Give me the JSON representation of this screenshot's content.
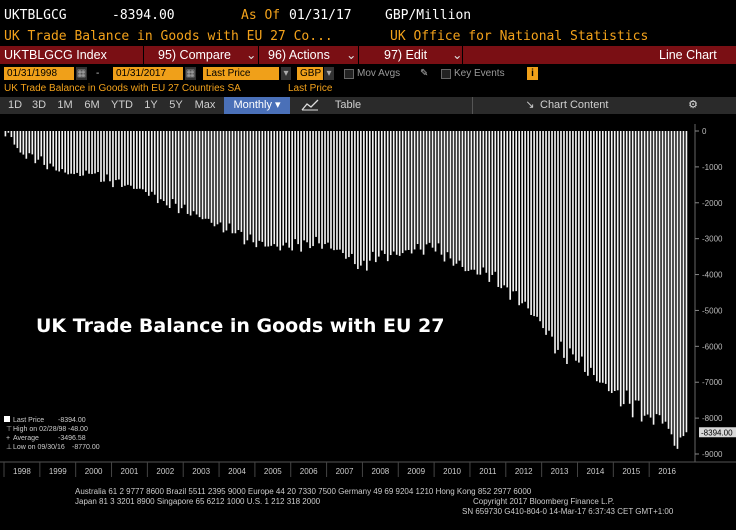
{
  "header": {
    "ticker": "UKTBLGCG",
    "value": "-8394.00",
    "as_of_label": "As Of",
    "as_of_date": "01/31/17",
    "units": "GBP/Million",
    "long_title": "UK Trade Balance in Goods with EU 27 Co...",
    "source": "UK Office for National Statistics"
  },
  "menu": {
    "index": "UKTBLGCG Index",
    "compare": "95) Compare",
    "actions": "96) Actions",
    "edit": "97) Edit",
    "view": "Line Chart"
  },
  "toolbar": {
    "start_date": "01/31/1998",
    "dash": "-",
    "end_date": "01/31/2017",
    "price_type": "Last Price",
    "currency": "GBP",
    "mov_avgs": "Mov Avgs",
    "key_events": "Key Events",
    "info": "i"
  },
  "subheader": {
    "series": "UK Trade Balance in Goods with EU 27 Countries SA",
    "field": "Last Price"
  },
  "tabs": [
    "1D",
    "3D",
    "1M",
    "6M",
    "YTD",
    "1Y",
    "5Y",
    "Max"
  ],
  "frequency": "Monthly",
  "table_label": "Table",
  "chart_content_label": "Chart Content",
  "legend": {
    "last_price_label": "Last Price",
    "last_price": "-8394.00",
    "high_label": "High on 02/28/98",
    "high": "-48.00",
    "avg_label": "Average",
    "avg": "-3496.58",
    "low_label": "Low on 09/30/16",
    "low": "-8770.00"
  },
  "watermark": "UK Trade Balance in Goods with EU 27",
  "last_value_tag": "-8394.00",
  "footer": {
    "line1": "Australia 61 2 9777 8600 Brazil 5511 2395 9000 Europe 44 20 7330 7500 Germany 49 69 9204 1210 Hong Kong 852 2977 6000",
    "line2a": "Japan 81 3 3201 8900         Singapore 65 6212 1000         U.S. 1 212 318 2000",
    "line2b": "Copyright 2017 Bloomberg Finance L.P.",
    "line3": "SN 659730 G410-804-0 14-Mar-17  6:37:43 CET  GMT+1:00"
  },
  "chart_data": {
    "type": "bar",
    "title": "",
    "ylim": [
      -9000,
      0
    ],
    "yticks": [
      0,
      -1000,
      -2000,
      -3000,
      -4000,
      -5000,
      -6000,
      -7000,
      -8000,
      -9000
    ],
    "ytick_labels": [
      "0",
      "-1000",
      "-2000",
      "-3000",
      "-4000",
      "-5000",
      "-6000",
      "-7000",
      "-8000",
      "-9000"
    ],
    "years": [
      "1998",
      "1999",
      "2000",
      "2001",
      "2002",
      "2003",
      "2004",
      "2005",
      "2006",
      "2007",
      "2008",
      "2009",
      "2010",
      "2011",
      "2012",
      "2013",
      "2014",
      "2015",
      "2016"
    ],
    "start": "1998-01",
    "end": "2017-01",
    "anchors": [
      [
        "1998-01",
        -150
      ],
      [
        "1998-02",
        -48
      ],
      [
        "1998-06",
        -600
      ],
      [
        "1998-12",
        -800
      ],
      [
        "1999-06",
        -1100
      ],
      [
        "1999-12",
        -1200
      ],
      [
        "2000-06",
        -1200
      ],
      [
        "2000-12",
        -1400
      ],
      [
        "2001-06",
        -1500
      ],
      [
        "2001-12",
        -1700
      ],
      [
        "2002-06",
        -1950
      ],
      [
        "2002-12",
        -2150
      ],
      [
        "2003-06",
        -2400
      ],
      [
        "2003-12",
        -2600
      ],
      [
        "2004-06",
        -2850
      ],
      [
        "2004-12",
        -3100
      ],
      [
        "2005-06",
        -3200
      ],
      [
        "2005-12",
        -3250
      ],
      [
        "2006-06",
        -3100
      ],
      [
        "2006-12",
        -3150
      ],
      [
        "2007-06",
        -3400
      ],
      [
        "2007-12",
        -3750
      ],
      [
        "2008-06",
        -3500
      ],
      [
        "2008-12",
        -3450
      ],
      [
        "2009-06",
        -3300
      ],
      [
        "2009-12",
        -3250
      ],
      [
        "2010-06",
        -3550
      ],
      [
        "2010-12",
        -3900
      ],
      [
        "2011-06",
        -3950
      ],
      [
        "2011-12",
        -4300
      ],
      [
        "2012-06",
        -4800
      ],
      [
        "2012-12",
        -5300
      ],
      [
        "2013-06",
        -6100
      ],
      [
        "2013-12",
        -6400
      ],
      [
        "2014-06",
        -6800
      ],
      [
        "2014-12",
        -7300
      ],
      [
        "2015-06",
        -7600
      ],
      [
        "2015-12",
        -7900
      ],
      [
        "2016-06",
        -8100
      ],
      [
        "2016-09",
        -8770
      ],
      [
        "2016-12",
        -8500
      ],
      [
        "2017-01",
        -8394
      ]
    ],
    "last": -8394,
    "high": -48,
    "average": -3496.58,
    "low": -8770
  }
}
